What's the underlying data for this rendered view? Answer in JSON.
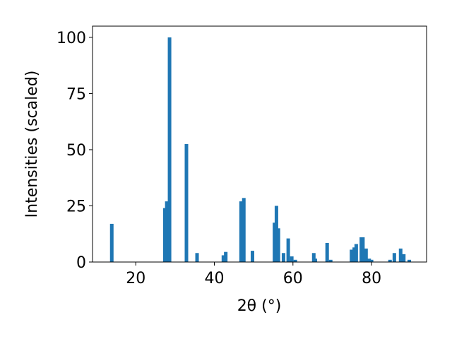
{
  "chart_data": {
    "type": "bar",
    "x": [
      13.9,
      27.4,
      27.9,
      28.6,
      32.9,
      35.6,
      42.3,
      42.9,
      46.8,
      47.5,
      49.7,
      55.3,
      55.8,
      56.3,
      57.6,
      58.8,
      59.7,
      60.6,
      65.3,
      65.7,
      68.7,
      69.6,
      74.9,
      75.6,
      76.1,
      77.4,
      77.8,
      78.6,
      79.4,
      80.0,
      84.7,
      85.8,
      87.4,
      88.2,
      89.6
    ],
    "values": [
      17,
      24,
      27,
      100,
      52.5,
      4,
      3,
      4.5,
      27,
      28.5,
      5,
      17.5,
      25,
      15,
      4,
      10.5,
      2.5,
      1,
      4,
      1.5,
      8.5,
      1,
      5.5,
      6.5,
      8,
      11,
      11,
      6,
      1.5,
      1,
      1,
      4,
      6,
      3.5,
      1
    ],
    "color": "#1f77b4",
    "xlabel": "2θ (°)",
    "ylabel": "Intensities (scaled)",
    "xlim": [
      9,
      94
    ],
    "xticks": [
      20,
      40,
      60,
      80
    ],
    "ylim": [
      0,
      105
    ],
    "yticks": [
      0,
      25,
      50,
      75,
      100
    ]
  }
}
